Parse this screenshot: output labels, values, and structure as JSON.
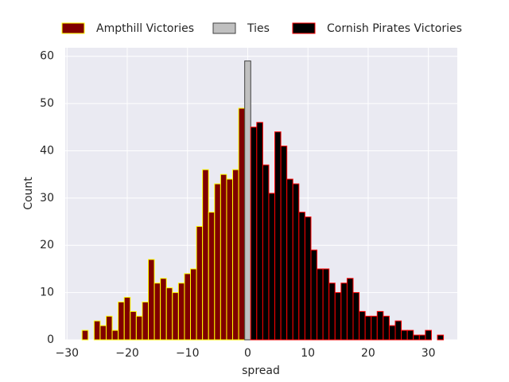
{
  "chart_data": {
    "type": "histogram",
    "xlabel": "spread",
    "ylabel": "Count",
    "xlim": [
      -30.3,
      34.8
    ],
    "ylim": [
      0,
      61.8
    ],
    "xticks": [
      {
        "value": -30,
        "label": "−30"
      },
      {
        "value": -20,
        "label": "−20"
      },
      {
        "value": -10,
        "label": "−10"
      },
      0,
      10,
      20,
      30
    ],
    "yticks": [
      0,
      10,
      20,
      30,
      40,
      50,
      60
    ],
    "grid": true,
    "legend": "top",
    "series": [
      {
        "name": "Ampthill Victories",
        "color": "#800000",
        "edgecolor": "#ffff00",
        "bins": [
          -27.5,
          -26.5,
          -25.5,
          -24.5,
          -23.5,
          -22.5,
          -21.5,
          -20.5,
          -19.5,
          -18.5,
          -17.5,
          -16.5,
          -15.5,
          -14.5,
          -13.5,
          -12.5,
          -11.5,
          -10.5,
          -9.5,
          -8.5,
          -7.5,
          -6.5,
          -5.5,
          -4.5,
          -3.5,
          -2.5,
          -1.5,
          -0.5
        ],
        "values": [
          2,
          0,
          4,
          3,
          5,
          2,
          8,
          9,
          6,
          5,
          8,
          17,
          12,
          13,
          11,
          10,
          12,
          14,
          15,
          24,
          36,
          27,
          33,
          35,
          34,
          36,
          49
        ]
      },
      {
        "name": "Ties",
        "color": "#c0c0c0",
        "edgecolor": "#404040",
        "bins": [
          -0.5,
          0.5
        ],
        "values": [
          59
        ]
      },
      {
        "name": "Cornish Pirates Victories",
        "color": "#000000",
        "edgecolor": "#ff0000",
        "bins": [
          0.5,
          1.5,
          2.5,
          3.5,
          4.5,
          5.5,
          6.5,
          7.5,
          8.5,
          9.5,
          10.5,
          11.5,
          12.5,
          13.5,
          14.5,
          15.5,
          16.5,
          17.5,
          18.5,
          19.5,
          20.5,
          21.5,
          22.5,
          23.5,
          24.5,
          25.5,
          26.5,
          27.5,
          28.5,
          29.5,
          30.5,
          31.5,
          32.5
        ],
        "values": [
          45,
          46,
          37,
          31,
          44,
          41,
          34,
          33,
          27,
          26,
          19,
          15,
          15,
          12,
          10,
          12,
          13,
          10,
          6,
          5,
          5,
          6,
          5,
          3,
          4,
          2,
          2,
          1,
          1,
          2,
          0,
          1
        ]
      }
    ]
  }
}
